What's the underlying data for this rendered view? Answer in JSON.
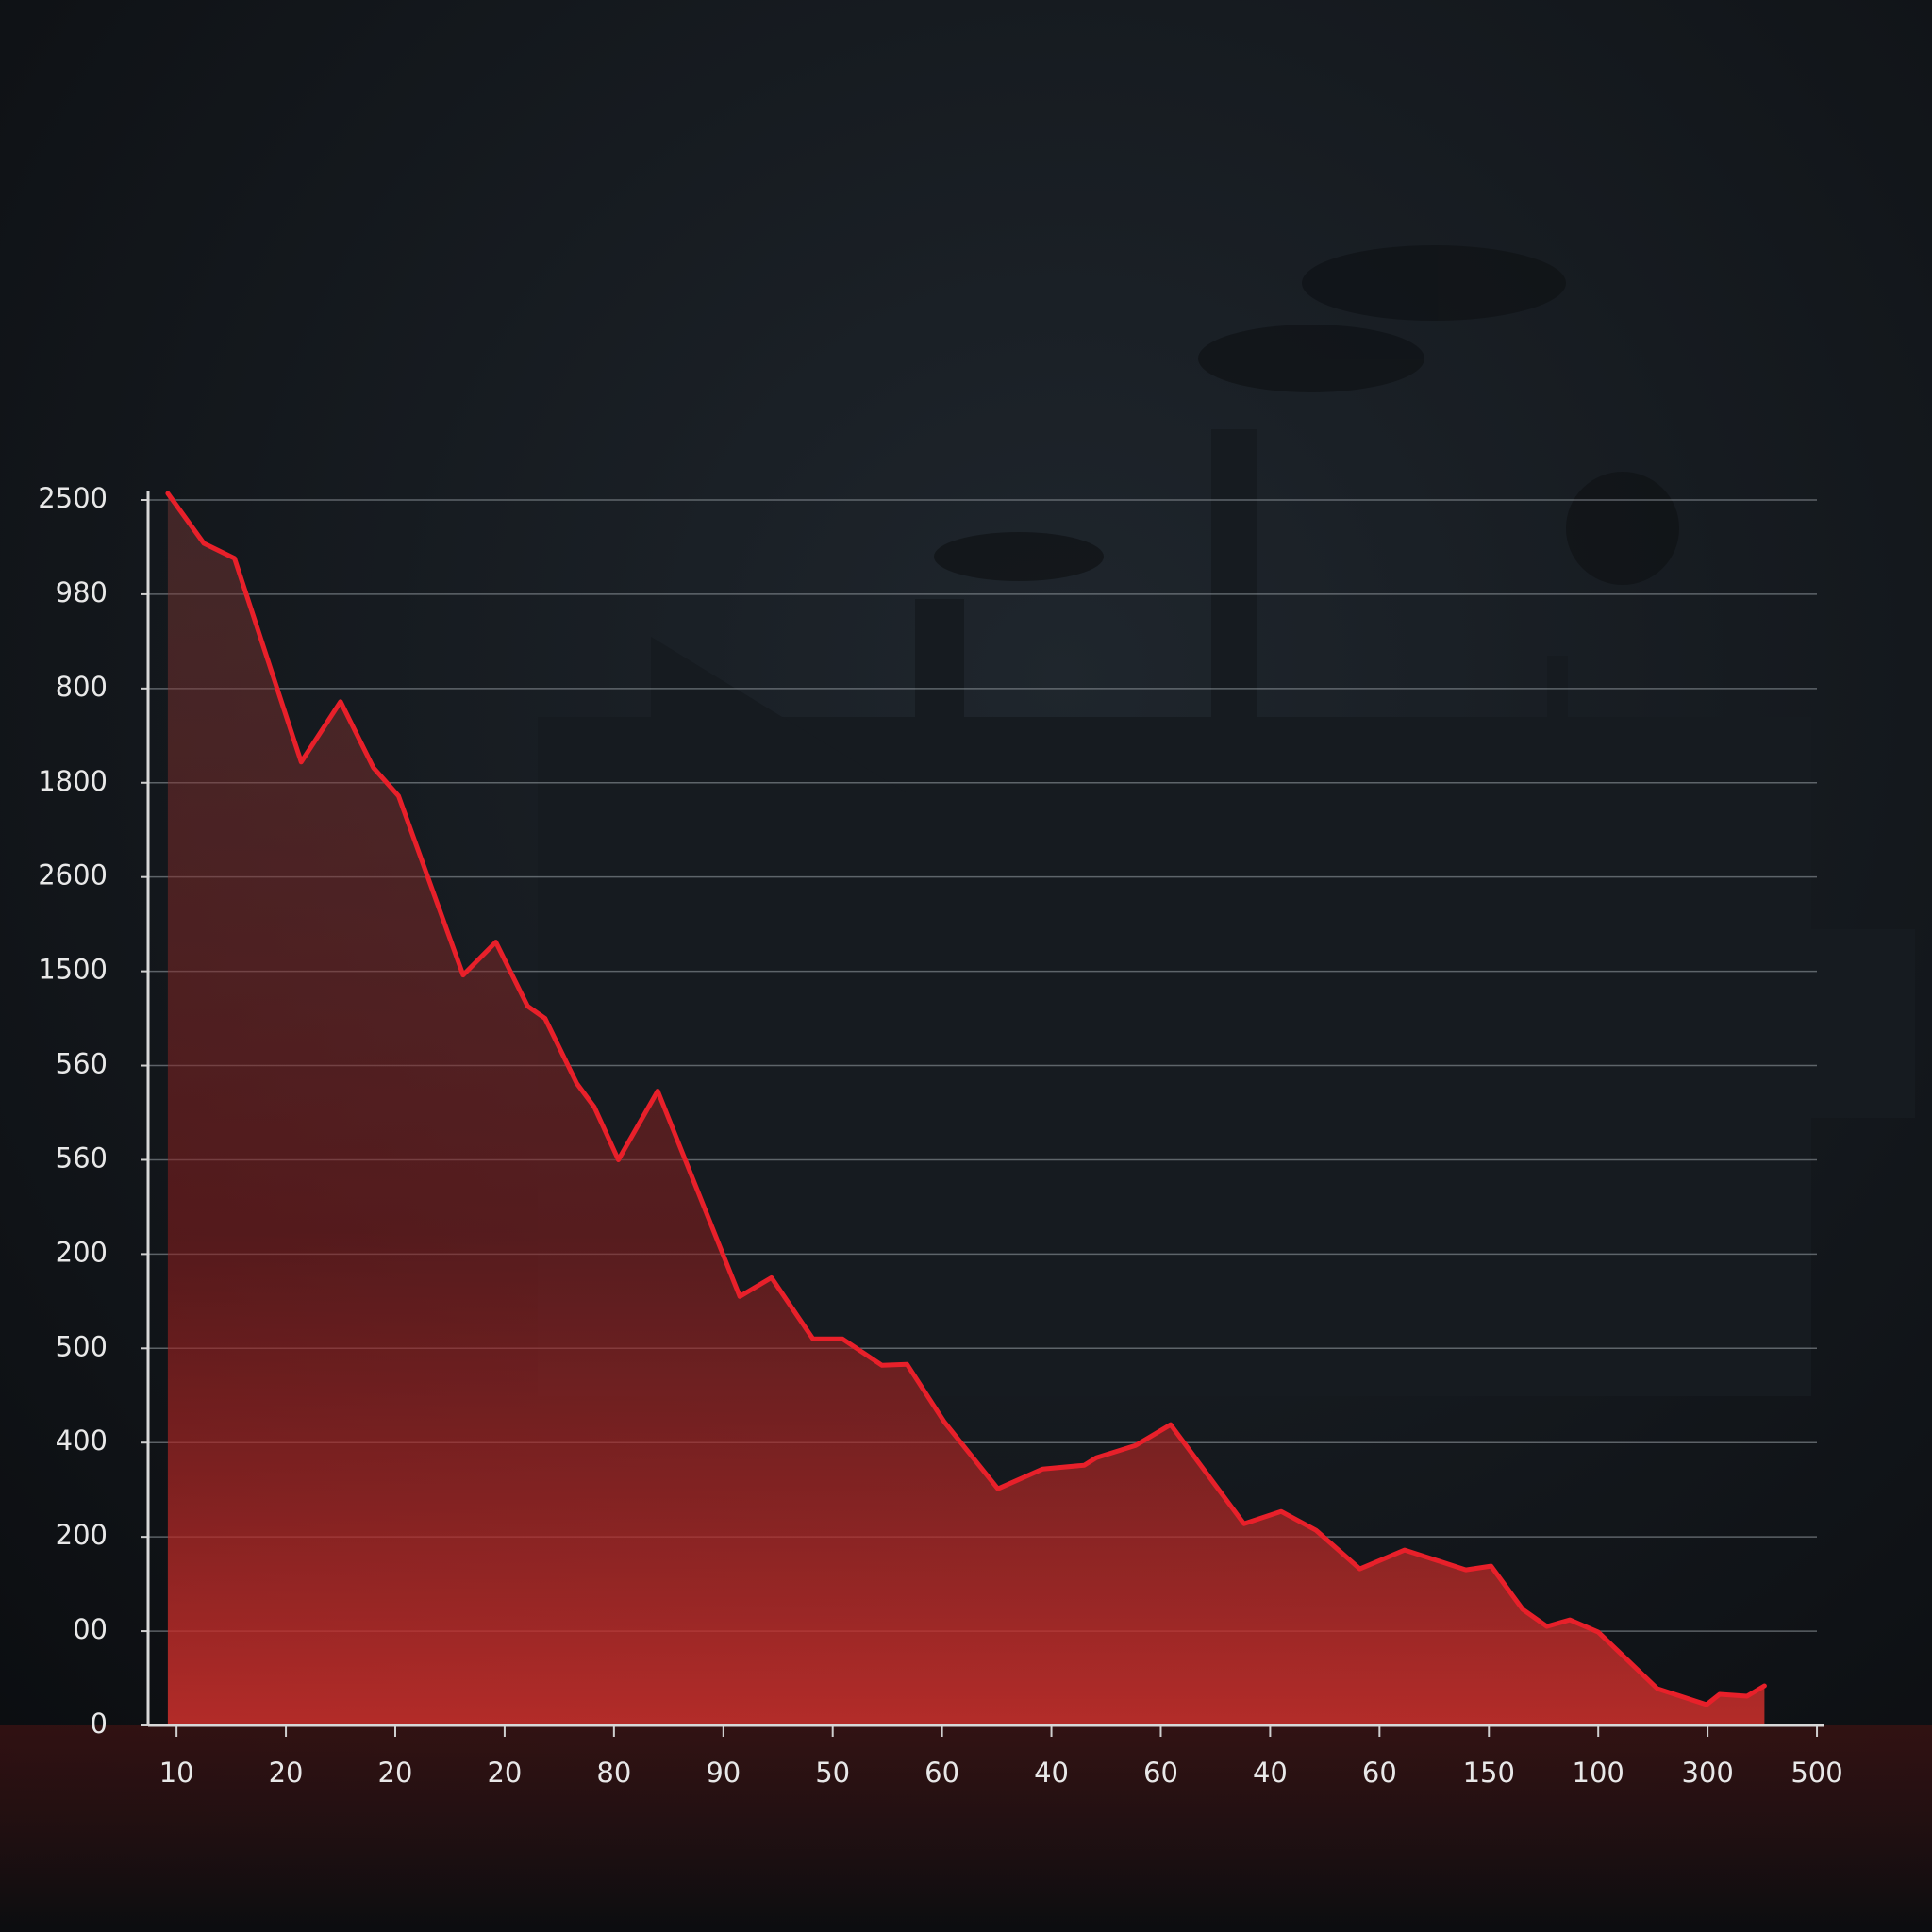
{
  "chart_data": {
    "type": "line",
    "xlim": [
      -0.26,
      15.06
    ],
    "xticks": [
      {
        "value": 0,
        "label": "10"
      },
      {
        "value": 1,
        "label": "20"
      },
      {
        "value": 2,
        "label": "20"
      },
      {
        "value": 3,
        "label": "20"
      },
      {
        "value": 4,
        "label": "80"
      },
      {
        "value": 5,
        "label": "90"
      },
      {
        "value": 6,
        "label": "50"
      },
      {
        "value": 7,
        "label": "60"
      },
      {
        "value": 8,
        "label": "40"
      },
      {
        "value": 9,
        "label": "60"
      },
      {
        "value": 10,
        "label": "40"
      },
      {
        "value": 11,
        "label": "60"
      },
      {
        "value": 12,
        "label": "150"
      },
      {
        "value": 13,
        "label": "100"
      },
      {
        "value": 14,
        "label": "300"
      },
      {
        "value": 15,
        "label": "500"
      }
    ],
    "ylim": [
      0,
      13.1
    ],
    "yticks": [
      0,
      {
        "value": 1,
        "label": "00"
      },
      {
        "value": 2,
        "label": "200"
      },
      {
        "value": 3,
        "label": "400"
      },
      {
        "value": 4,
        "label": "500"
      },
      {
        "value": 5,
        "label": "200"
      },
      {
        "value": 6,
        "label": "560"
      },
      {
        "value": 7,
        "label": "560"
      },
      {
        "value": 8,
        "label": "1500"
      },
      {
        "value": 9,
        "label": "2600"
      },
      {
        "value": 10,
        "label": "1800"
      },
      {
        "value": 11,
        "label": "800"
      },
      {
        "value": 12,
        "label": "980"
      },
      {
        "value": 13,
        "label": "2500"
      }
    ],
    "grid": true,
    "series": [
      {
        "color": "#e8202a",
        "x": [
          -0.08,
          0.25,
          0.53,
          1.14,
          1.5,
          1.8,
          2.03,
          2.62,
          2.92,
          3.21,
          3.37,
          3.66,
          3.82,
          4.04,
          4.4,
          5.15,
          5.44,
          5.82,
          6.09,
          6.45,
          6.68,
          7.02,
          7.51,
          7.92,
          8.3,
          8.41,
          8.77,
          9.09,
          9.76,
          10.1,
          10.42,
          10.82,
          11.23,
          11.79,
          12.02,
          12.31,
          12.53,
          12.74,
          13.0,
          13.54,
          13.99,
          14.11,
          14.36,
          14.52
        ],
        "values": [
          13.07,
          12.54,
          12.38,
          10.22,
          10.86,
          10.16,
          9.86,
          7.96,
          8.31,
          7.63,
          7.5,
          6.81,
          6.56,
          6.0,
          6.73,
          4.55,
          4.75,
          4.1,
          4.1,
          3.82,
          3.83,
          3.22,
          2.51,
          2.72,
          2.76,
          2.84,
          2.97,
          3.19,
          2.14,
          2.27,
          2.07,
          1.66,
          1.86,
          1.65,
          1.69,
          1.23,
          1.05,
          1.12,
          0.99,
          0.39,
          0.22,
          0.33,
          0.31,
          0.42
        ]
      }
    ]
  }
}
